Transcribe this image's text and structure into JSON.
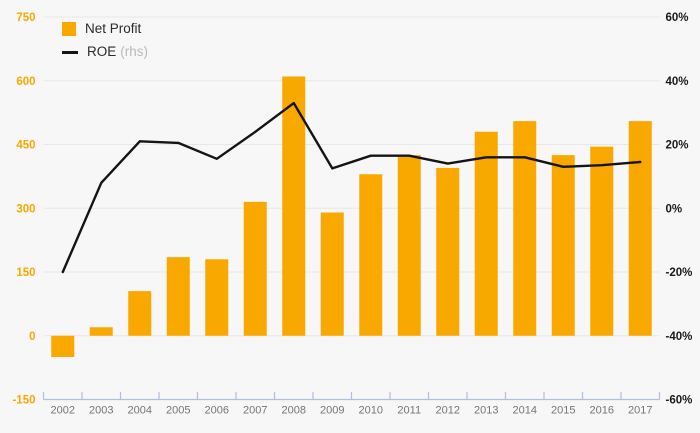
{
  "legend": {
    "net_profit_label": "Net Profit",
    "roe_label": "ROE",
    "roe_suffix": "(rhs)"
  },
  "chart_data": {
    "type": "bar",
    "subtype": "bar+line combo, dual axis",
    "categories": [
      "2002",
      "2003",
      "2004",
      "2005",
      "2006",
      "2007",
      "2008",
      "2009",
      "2010",
      "2011",
      "2012",
      "2013",
      "2014",
      "2015",
      "2016",
      "2017"
    ],
    "series": [
      {
        "name": "Net Profit",
        "type": "bar",
        "axis": "left",
        "color": "#F9A800",
        "values": [
          -50,
          20,
          105,
          185,
          180,
          315,
          610,
          290,
          380,
          425,
          395,
          480,
          505,
          425,
          445,
          505
        ]
      },
      {
        "name": "ROE",
        "type": "line",
        "axis": "right",
        "color": "#141414",
        "values": [
          -20,
          8,
          21,
          20.5,
          15.5,
          24,
          33,
          12.5,
          16.5,
          16.5,
          14,
          16,
          16,
          13,
          13.5,
          14.5
        ]
      }
    ],
    "left_axis": {
      "tick_labels": [
        "750",
        "600",
        "450",
        "300",
        "150",
        "0",
        "-150"
      ],
      "tick_values": [
        750,
        600,
        450,
        300,
        150,
        0,
        -150
      ],
      "range": [
        -150,
        750
      ],
      "label_color": "#F9A800"
    },
    "right_axis": {
      "tick_labels": [
        "60%",
        "40%",
        "20%",
        "0%",
        "-20%",
        "-40%",
        "-60%"
      ],
      "tick_values": [
        60,
        40,
        20,
        0,
        -20,
        -40,
        -60
      ],
      "range": [
        -60,
        60
      ],
      "label_color": "#1a1a1a"
    },
    "x_axis": {
      "label_color": "#757575",
      "line_color": "#b3bedc"
    },
    "grid": true,
    "gridline_color": "#e7e7e7",
    "background_color": "#f7f7f7",
    "legend_position": "top-left",
    "title": ""
  }
}
